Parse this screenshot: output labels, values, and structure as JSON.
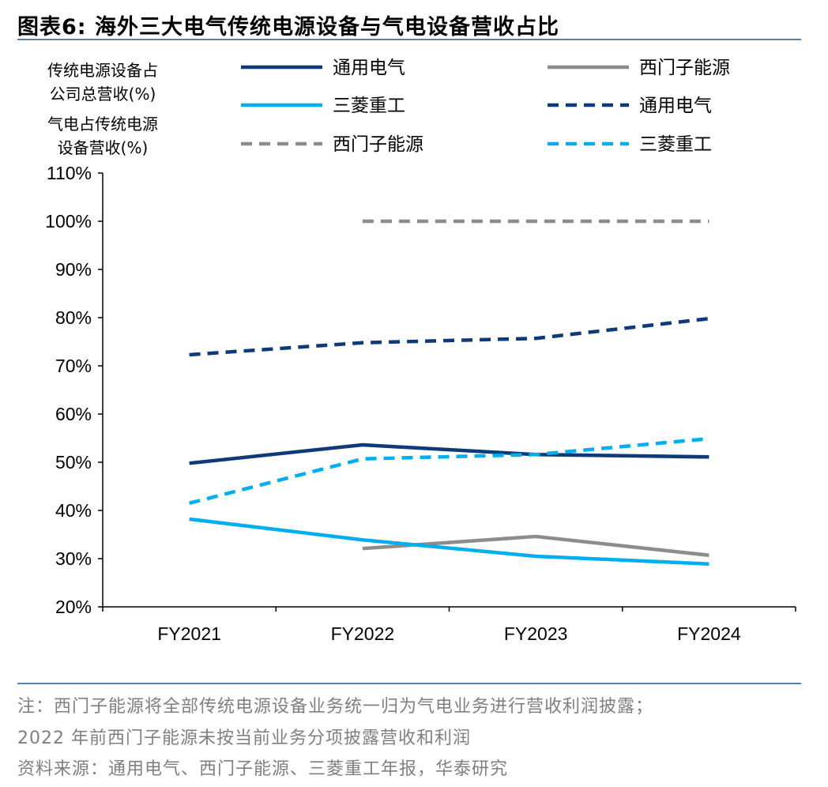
{
  "title": "图表6:   海外三大电气传统电源设备与气电设备营收占比",
  "legend_groups": {
    "solid": [
      "传统电源设备占",
      "公司总营收(%)"
    ],
    "dashed": [
      "气电占传统电源",
      "设备营收(%)"
    ]
  },
  "notes": {
    "line1": "注：西门子能源将全部传统电源设备业务统一归为气电业务进行营收利润披露；",
    "line2": "2022 年前西门子能源未按当前业务分项披露营收和利润",
    "source": "资料来源：通用电气、西门子能源、三菱重工年报，华泰研究"
  },
  "colors": {
    "ge": "#0f3a78",
    "siemens": "#8c8c8c",
    "mhi": "#00aeef",
    "rule": "#5b7fa8"
  },
  "chart_data": {
    "type": "line",
    "categories": [
      "FY2021",
      "FY2022",
      "FY2023",
      "FY2024"
    ],
    "ylim": [
      20,
      110
    ],
    "yticks": [
      "20%",
      "30%",
      "40%",
      "50%",
      "60%",
      "70%",
      "80%",
      "90%",
      "100%",
      "110%"
    ],
    "grid": false,
    "legend_position": "top",
    "series": [
      {
        "name": "通用电气",
        "group": "solid",
        "color_key": "ge",
        "dash": false,
        "values": [
          49.8,
          53.6,
          51.6,
          51.1
        ]
      },
      {
        "name": "西门子能源",
        "group": "solid",
        "color_key": "siemens",
        "dash": false,
        "values": [
          null,
          32.1,
          34.6,
          30.7
        ]
      },
      {
        "name": "三菱重工",
        "group": "solid",
        "color_key": "mhi",
        "dash": false,
        "values": [
          38.2,
          33.9,
          30.5,
          28.9
        ]
      },
      {
        "name": "通用电气",
        "group": "dashed",
        "color_key": "ge",
        "dash": true,
        "values": [
          72.3,
          74.8,
          75.7,
          79.8
        ]
      },
      {
        "name": "西门子能源",
        "group": "dashed",
        "color_key": "siemens",
        "dash": true,
        "values": [
          null,
          100,
          100,
          100
        ]
      },
      {
        "name": "三菱重工",
        "group": "dashed",
        "color_key": "mhi",
        "dash": true,
        "values": [
          41.5,
          50.7,
          51.6,
          54.9
        ]
      }
    ]
  }
}
